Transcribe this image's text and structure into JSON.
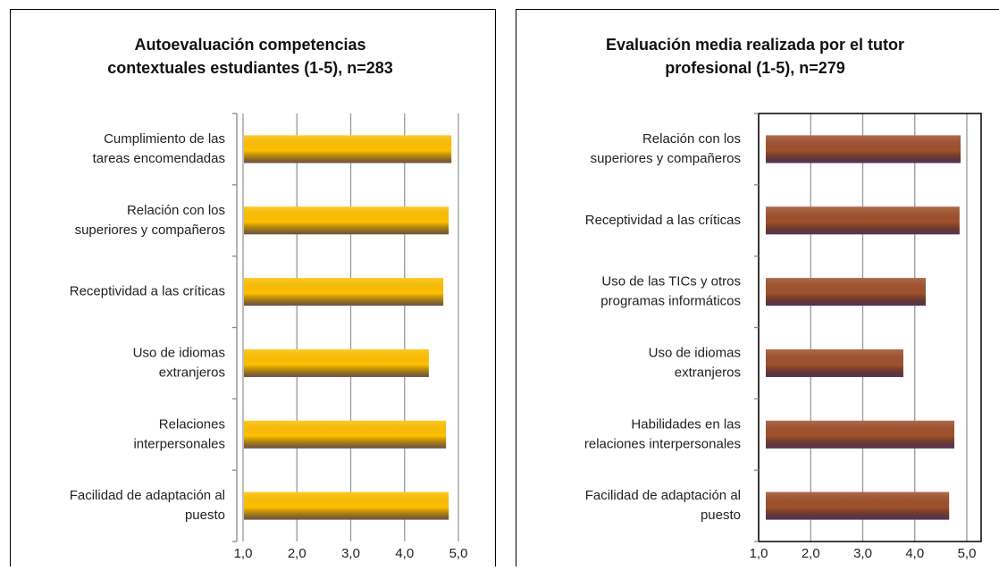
{
  "chart_data": [
    {
      "type": "bar",
      "orientation": "horizontal",
      "title": "Autoevaluación competencias\ncontextuales estudiantes (1-5), n=283",
      "categories": [
        "Cumplimiento de las\ntareas encomendadas",
        "Relación con los\nsuperiores y compañeros",
        "Receptividad a las críticas",
        "Uso de idiomas\nextranjeros",
        "Relaciones\ninterpersonales",
        "Facilidad de adaptación al\npuesto"
      ],
      "values": [
        4.87,
        4.82,
        4.72,
        4.45,
        4.77,
        4.82
      ],
      "color": "#ffc000",
      "xlim": [
        1,
        5
      ],
      "xticks": [
        {
          "value": 1,
          "label": "1,0"
        },
        {
          "value": 2,
          "label": "2,0"
        },
        {
          "value": 3,
          "label": "3,0"
        },
        {
          "value": 4,
          "label": "4,0"
        },
        {
          "value": 5,
          "label": "5,0"
        }
      ],
      "grid": true,
      "plot_border": false
    },
    {
      "type": "bar",
      "orientation": "horizontal",
      "title": "Evaluación media realizada por el tutor\nprofesional (1-5), n=279",
      "categories": [
        "Relación con los\nsuperiores y compañeros",
        "Receptividad a las críticas",
        "Uso de las TICs y otros\nprogramas informáticos",
        "Uso de idiomas\nextranjeros",
        "Habilidades en las\nrelaciones interpersonales",
        "Facilidad de adaptación al\npuesto"
      ],
      "values": [
        4.88,
        4.86,
        4.21,
        3.78,
        4.76,
        4.66
      ],
      "color": "#a0522d",
      "xlim": [
        1,
        5
      ],
      "xticks": [
        {
          "value": 1,
          "label": "1,0"
        },
        {
          "value": 2,
          "label": "2,0"
        },
        {
          "value": 3,
          "label": "3,0"
        },
        {
          "value": 4,
          "label": "4,0"
        },
        {
          "value": 5,
          "label": "5,0"
        }
      ],
      "grid": true,
      "plot_border": true
    }
  ]
}
